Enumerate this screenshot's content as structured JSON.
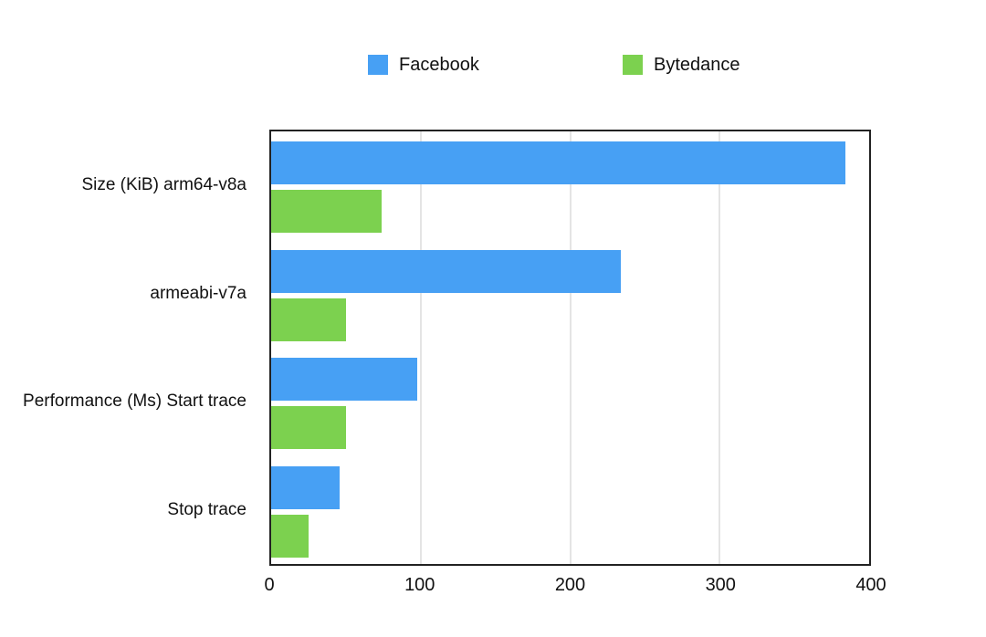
{
  "chart_data": {
    "type": "bar",
    "orientation": "horizontal",
    "title": "",
    "xlabel": "",
    "ylabel": "",
    "categories": [
      "Size (KiB) arm64-v8a",
      "armeabi-v7a",
      "Performance (Ms) Start trace",
      "Stop trace"
    ],
    "series": [
      {
        "name": "Facebook",
        "color": "#47a0f4",
        "values": [
          384,
          234,
          98,
          46
        ]
      },
      {
        "name": "Bytedance",
        "color": "#7cd14f",
        "values": [
          74,
          50,
          50,
          25
        ]
      }
    ],
    "xlim": [
      0,
      400
    ],
    "x_ticks": [
      0,
      100,
      200,
      300,
      400
    ],
    "grid": "vertical-only",
    "legend_position": "top"
  },
  "colors": {
    "plot_border": "#222222",
    "gridline": "#e4e4e4",
    "text": "#111111",
    "background": "#ffffff"
  }
}
